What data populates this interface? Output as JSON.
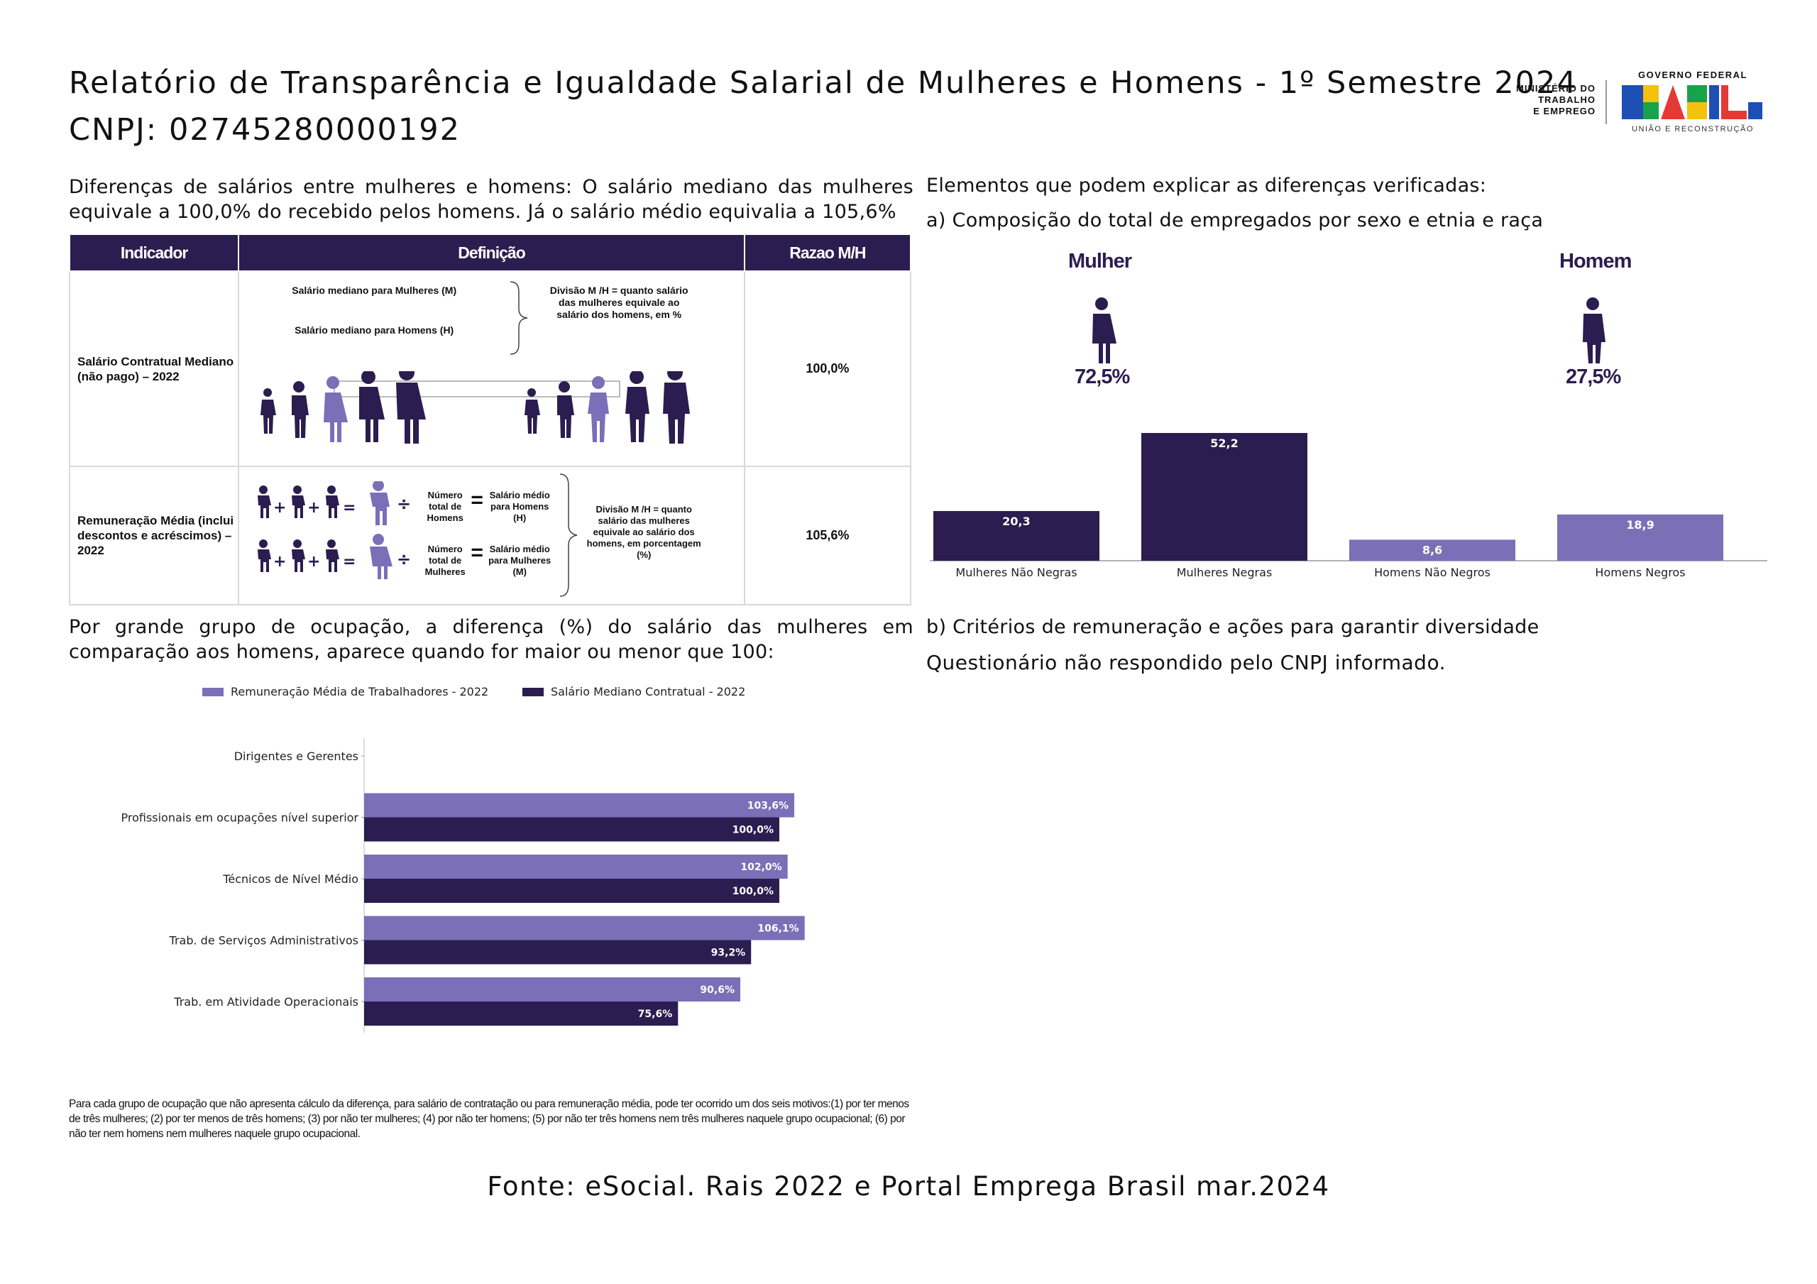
{
  "header": {
    "title": "Relatório de Transparência e Igualdade Salarial de Mulheres e Homens - 1º Semestre 2024",
    "cnpj": "CNPJ: 02745280000192"
  },
  "logo": {
    "ministry": [
      "MINISTÉRIO DO",
      "TRABALHO",
      "E EMPREGO"
    ],
    "gov_top": "GOVERNO FEDERAL",
    "brand": "BRASIL",
    "gov_bottom": "UNIÃO E RECONSTRUÇÃO"
  },
  "intro": "Diferenças de salários entre mulheres e homens: O salário mediano das mulheres equivale a 100,0% do recebido pelos homens. Já o salário médio equivalia a 105,6%",
  "indicator_table": {
    "headers": [
      "Indicador",
      "Definição",
      "Razao M/H"
    ],
    "rows": [
      {
        "label": "Salário Contratual Mediano (não pago) – 2022",
        "def_line1": "Salário mediano para Mulheres (M)",
        "def_line2": "Salário mediano para Homens (H)",
        "def_note": "Divisão M /H = quanto salário das mulheres equivale ao salário dos homens, em %",
        "value": "100,0%"
      },
      {
        "label": "Remuneração Média (inclui descontos e acréscimos) – 2022",
        "count_men": "Número total de Homens",
        "avg_men": "Salário médio para Homens (H)",
        "count_women": "Número total de Mulheres",
        "avg_women": "Salário médio para Mulheres (M)",
        "def_note": "Divisão M /H = quanto salário das mulheres equivale ao salário dos homens, em porcentagem (%)",
        "value": "105,6%"
      }
    ]
  },
  "composition": {
    "section_title": "Elementos que podem explicar as diferenças verificadas:",
    "subtitle": "a) Composição do total de empregados por sexo e etnia e raça",
    "women_label": "Mulher",
    "women_pct": "72,5%",
    "men_label": "Homem",
    "men_pct": "27,5%"
  },
  "criteria": {
    "title": "b) Critérios de remuneração e ações para garantir diversidade",
    "text": "Questionário não respondido pelo CNPJ informado."
  },
  "occupation_intro": "Por grande grupo de ocupação, a diferença (%) do salário das mulheres em comparação aos homens, aparece quando for maior ou menor que 100:",
  "footnote": "Para cada grupo de ocupação que não apresenta cálculo da diferença, para salário de contratação ou para remuneração média, pode ter ocorrido um dos seis motivos:(1) por ter menos de três mulheres; (2) por ter menos de três homens; (3) por não ter mulheres; (4) por não ter homens; (5) por não ter três homens nem três mulheres naquele grupo ocupacional; (6) por não ter nem homens nem mulheres naquele grupo ocupacional.",
  "source": "Fonte: eSocial. Rais 2022 e Portal Emprega Brasil mar.2024",
  "colors": {
    "dark": "#2b1d4f",
    "light": "#7b6fb8"
  },
  "chart_data": [
    {
      "type": "bar",
      "categories": [
        "Mulheres Não Negras",
        "Mulheres Negras",
        "Homens Não Negros",
        "Homens Negros"
      ],
      "values": [
        20.3,
        52.2,
        8.6,
        18.9
      ],
      "labels": [
        "20,3",
        "52,2",
        "8,6",
        "18,9"
      ],
      "colors": [
        "#2b1d4f",
        "#2b1d4f",
        "#7b6fb8",
        "#7b6fb8"
      ],
      "ylim": [
        0,
        52.2
      ]
    },
    {
      "type": "bar",
      "orientation": "horizontal",
      "categories": [
        "Dirigentes e Gerentes",
        "Profissionais em ocupações nível superior",
        "Técnicos de Nível Médio",
        "Trab. de Serviços Administrativos",
        "Trab. em Atividade Operacionais"
      ],
      "series": [
        {
          "name": "Remuneração Média de Trabalhadores - 2022",
          "color": "#7b6fb8",
          "values": [
            null,
            103.6,
            102.0,
            106.1,
            90.6
          ],
          "labels": [
            "",
            "103,6%",
            "102,0%",
            "106,1%",
            "90,6%"
          ]
        },
        {
          "name": "Salário Mediano Contratual - 2022",
          "color": "#2b1d4f",
          "values": [
            null,
            100.0,
            100.0,
            93.2,
            75.6
          ],
          "labels": [
            "",
            "100,0%",
            "100,0%",
            "93,2%",
            "75,6%"
          ]
        }
      ],
      "legend": "top"
    }
  ]
}
